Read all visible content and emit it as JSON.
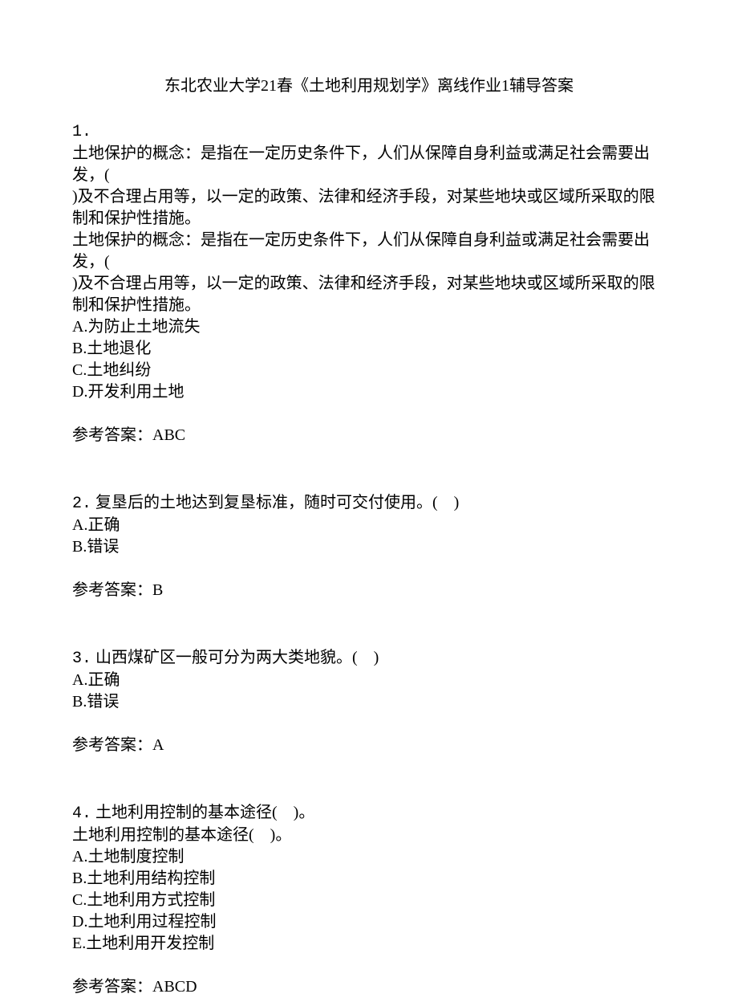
{
  "title": "东北农业大学21春《土地利用规划学》离线作业1辅导答案",
  "questions": [
    {
      "number": "1.",
      "stem_lines": [
        "土地保护的概念：是指在一定历史条件下，人们从保障自身利益或满足社会需要出发，(",
        ")及不合理占用等，以一定的政策、法律和经济手段，对某些地块或区域所采取的限制和保护性措施。",
        "土地保护的概念：是指在一定历史条件下，人们从保障自身利益或满足社会需要出发，(",
        ")及不合理占用等，以一定的政策、法律和经济手段，对某些地块或区域所采取的限制和保护性措施。"
      ],
      "options": [
        "A.为防止土地流失",
        "B.土地退化",
        "C.土地纠纷",
        "D.开发利用土地"
      ],
      "answer_label": "参考答案：",
      "answer_value": "ABC"
    },
    {
      "number": "2.",
      "stem_lines": [
        "复垦后的土地达到复垦标准，随时可交付使用。(　)"
      ],
      "options": [
        "A.正确",
        "B.错误"
      ],
      "answer_label": "参考答案：",
      "answer_value": "B"
    },
    {
      "number": "3.",
      "stem_lines": [
        "山西煤矿区一般可分为两大类地貌。(　)"
      ],
      "options": [
        "A.正确",
        "B.错误"
      ],
      "answer_label": "参考答案：",
      "answer_value": "A"
    },
    {
      "number": "4.",
      "stem_lines": [
        "土地利用控制的基本途径(　)。",
        "土地利用控制的基本途径(　)。"
      ],
      "inline_first": true,
      "options": [
        "A.土地制度控制",
        "B.土地利用结构控制",
        "C.土地利用方式控制",
        "D.土地利用过程控制",
        "E.土地利用开发控制"
      ],
      "answer_label": "参考答案：",
      "answer_value": "ABCD"
    }
  ]
}
